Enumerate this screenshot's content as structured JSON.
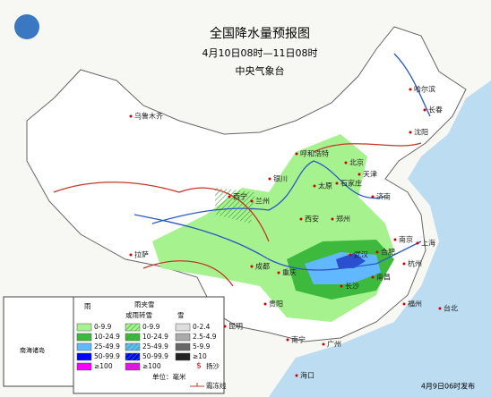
{
  "header": {
    "title": "全国降水量预报图",
    "period": "4月10日08时—11日08时",
    "issuer": "中央气象台"
  },
  "cities": [
    "乌鲁木齐",
    "哈尔滨",
    "长春",
    "沈阳",
    "呼和浩特",
    "北京",
    "天津",
    "石家庄",
    "太原",
    "济南",
    "银川",
    "兰州",
    "西宁",
    "西安",
    "郑州",
    "拉萨",
    "成都",
    "重庆",
    "武汉",
    "合肥",
    "南京",
    "上海",
    "杭州",
    "长沙",
    "南昌",
    "福州",
    "贵阳",
    "昆明",
    "南宁",
    "广州",
    "海口",
    "台北"
  ],
  "inset_label": "南海诸岛",
  "legend": {
    "rain_heading": "雨",
    "sleet_heading": [
      "雨夹雪",
      "或雨转雪"
    ],
    "snow_heading": "雪",
    "rain": [
      {
        "label": "0-9.9",
        "color": "#a6f28f"
      },
      {
        "label": "10-24.9",
        "color": "#3dba3d"
      },
      {
        "label": "25-49.9",
        "color": "#61b8ff"
      },
      {
        "label": "50-99.9",
        "color": "#0000fe"
      },
      {
        "label": "≥100",
        "color": "#fa00fa"
      }
    ],
    "sleet": [
      {
        "label": "0-9.9",
        "color": "#a6f28f"
      },
      {
        "label": "10-24.9",
        "color": "#3dba3d"
      },
      {
        "label": "25-49.9",
        "color": "#61b8ff"
      },
      {
        "label": "50-99.9",
        "color": "#0000fe"
      },
      {
        "label": "≥100",
        "color": "#fa00fa"
      }
    ],
    "snow": [
      {
        "label": "0-2.4",
        "color": "#dddddd"
      },
      {
        "label": "2.5-4.9",
        "color": "#aaaaaa"
      },
      {
        "label": "5-9.9",
        "color": "#666666"
      },
      {
        "label": "≥10",
        "color": "#222222"
      }
    ],
    "sand": "扬沙",
    "unit": "单位：毫米",
    "frost": "霜冻线"
  },
  "footer": "4月9日06时发布"
}
